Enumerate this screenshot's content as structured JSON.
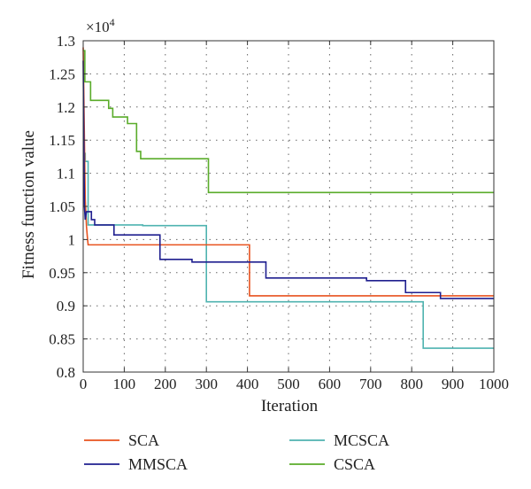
{
  "chart_data": {
    "type": "line",
    "title": "",
    "xlabel": "Iteration",
    "ylabel": "Fitness function value",
    "y_multiplier_label": "×10",
    "y_multiplier_exponent": "4",
    "xlim": [
      0,
      1000
    ],
    "ylim": [
      0.8,
      1.3
    ],
    "x_ticks": [
      0,
      100,
      200,
      300,
      400,
      500,
      600,
      700,
      800,
      900,
      1000
    ],
    "x_tick_labels": [
      "0",
      "100",
      "200",
      "300",
      "400",
      "500",
      "600",
      "700",
      "800",
      "900",
      "1000"
    ],
    "y_ticks": [
      0.8,
      0.85,
      0.9,
      0.95,
      1.0,
      1.05,
      1.1,
      1.15,
      1.2,
      1.25,
      1.3
    ],
    "y_tick_labels": [
      "0.8",
      "0.85",
      "0.9",
      "0.95",
      "1",
      "1.05",
      "1.1",
      "1.15",
      "1.2",
      "1.25",
      "1.3"
    ],
    "grid": true,
    "legend_position": "bottom",
    "series": [
      {
        "name": "SCA",
        "color": "#e8521e",
        "points": [
          [
            0,
            1.29
          ],
          [
            3,
            1.15
          ],
          [
            5,
            1.06
          ],
          [
            8,
            1.02
          ],
          [
            10,
            1.005
          ],
          [
            12,
            0.992
          ],
          [
            405,
            0.992
          ],
          [
            405,
            0.915
          ],
          [
            1000,
            0.915
          ]
        ]
      },
      {
        "name": "MMSCA",
        "color": "#1f1f8f",
        "points": [
          [
            0,
            1.27
          ],
          [
            3,
            1.05
          ],
          [
            5,
            1.03
          ],
          [
            8,
            1.042
          ],
          [
            20,
            1.042
          ],
          [
            20,
            1.03
          ],
          [
            28,
            1.03
          ],
          [
            28,
            1.022
          ],
          [
            75,
            1.022
          ],
          [
            75,
            1.007
          ],
          [
            187,
            1.007
          ],
          [
            187,
            0.97
          ],
          [
            265,
            0.97
          ],
          [
            265,
            0.966
          ],
          [
            445,
            0.966
          ],
          [
            445,
            0.942
          ],
          [
            690,
            0.942
          ],
          [
            690,
            0.938
          ],
          [
            785,
            0.938
          ],
          [
            785,
            0.92
          ],
          [
            870,
            0.92
          ],
          [
            870,
            0.911
          ],
          [
            1000,
            0.911
          ]
        ]
      },
      {
        "name": "MCSCA",
        "color": "#4fb3b0",
        "points": [
          [
            0,
            1.13
          ],
          [
            5,
            1.13
          ],
          [
            5,
            1.118
          ],
          [
            12,
            1.118
          ],
          [
            12,
            1.022
          ],
          [
            145,
            1.022
          ],
          [
            145,
            1.021
          ],
          [
            300,
            1.021
          ],
          [
            300,
            0.906
          ],
          [
            828,
            0.906
          ],
          [
            828,
            0.836
          ],
          [
            1000,
            0.836
          ]
        ]
      },
      {
        "name": "CSCA",
        "color": "#5aac2a",
        "points": [
          [
            0,
            1.285
          ],
          [
            4,
            1.285
          ],
          [
            4,
            1.238
          ],
          [
            18,
            1.238
          ],
          [
            18,
            1.21
          ],
          [
            62,
            1.21
          ],
          [
            62,
            1.198
          ],
          [
            72,
            1.198
          ],
          [
            72,
            1.185
          ],
          [
            108,
            1.185
          ],
          [
            108,
            1.175
          ],
          [
            130,
            1.175
          ],
          [
            130,
            1.133
          ],
          [
            140,
            1.133
          ],
          [
            140,
            1.122
          ],
          [
            305,
            1.122
          ],
          [
            305,
            1.071
          ],
          [
            1000,
            1.071
          ]
        ]
      }
    ]
  }
}
